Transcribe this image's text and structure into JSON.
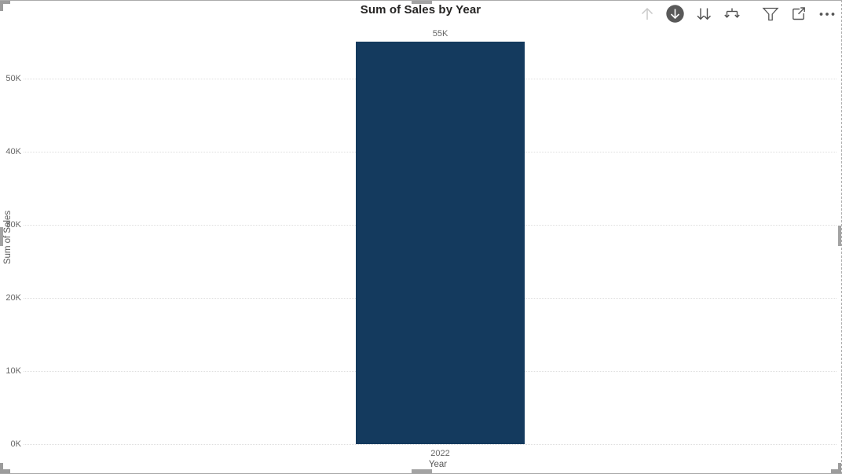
{
  "visual": {
    "title": "Sum of Sales by Year",
    "toolbar": {
      "icons": [
        {
          "name": "drill-up-icon",
          "state": "disabled"
        },
        {
          "name": "drill-down-icon",
          "state": "active"
        },
        {
          "name": "go-to-next-level-icon",
          "state": "normal"
        },
        {
          "name": "expand-all-icon",
          "state": "normal"
        },
        {
          "name": "filter-icon",
          "state": "normal"
        },
        {
          "name": "focus-mode-icon",
          "state": "normal"
        },
        {
          "name": "more-options-icon",
          "state": "normal"
        }
      ]
    },
    "colors": {
      "bar": "#143A5E",
      "title_text": "#252423",
      "axis_label": "#666666",
      "axis_title": "#5A5A5A",
      "gridline": "#DEDEDE",
      "handle": "#A3A3A3",
      "icon": "#555555",
      "icon_disabled": "#C9C9C9",
      "icon_active_bg": "#595959"
    }
  },
  "chart_data": {
    "type": "bar",
    "title": "Sum of Sales by Year",
    "categories": [
      "2022"
    ],
    "values": [
      55000
    ],
    "data_labels": [
      "55K"
    ],
    "xlabel": "Year",
    "ylabel": "Sum of Sales",
    "ylim": [
      0,
      55000
    ],
    "yticks": [
      0,
      10000,
      20000,
      30000,
      40000,
      50000
    ],
    "ytick_labels": [
      "0K",
      "10K",
      "20K",
      "30K",
      "40K",
      "50K"
    ],
    "grid": "horizontal-dotted",
    "legend": "none"
  }
}
